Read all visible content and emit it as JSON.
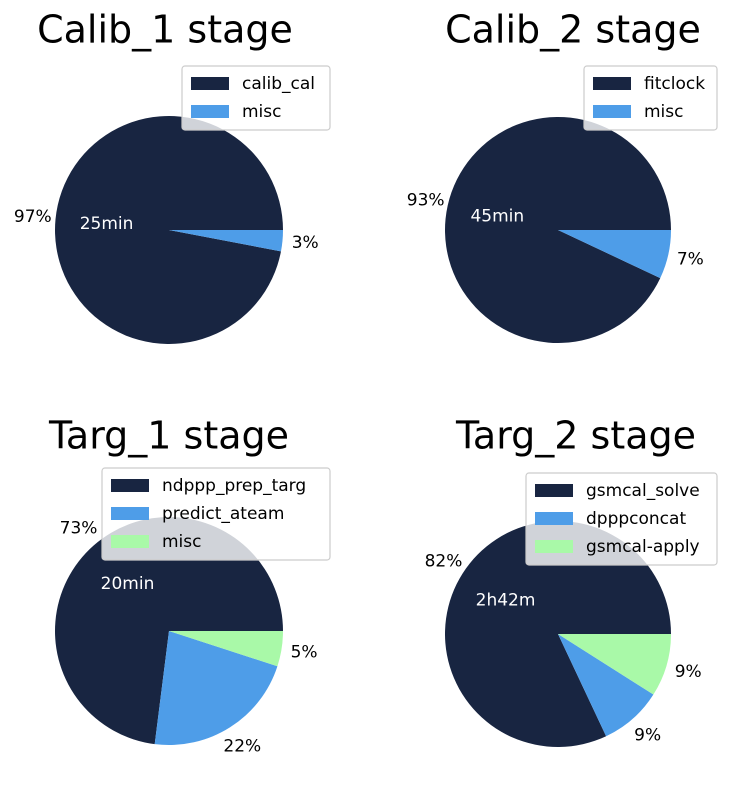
{
  "chart_data": [
    {
      "type": "pie",
      "title": "Calib_1 stage",
      "center_label": "25min",
      "slices": [
        {
          "label": "calib_cal",
          "value": 97,
          "pct_label": "97%",
          "color": "#182541"
        },
        {
          "label": "misc",
          "value": 3,
          "pct_label": "3%",
          "color": "#4e9de8"
        }
      ]
    },
    {
      "type": "pie",
      "title": "Calib_2 stage",
      "center_label": "45min",
      "slices": [
        {
          "label": "fitclock",
          "value": 93,
          "pct_label": "93%",
          "color": "#182541"
        },
        {
          "label": "misc",
          "value": 7,
          "pct_label": "7%",
          "color": "#4e9de8"
        }
      ]
    },
    {
      "type": "pie",
      "title": "Targ_1 stage",
      "center_label": "20min",
      "slices": [
        {
          "label": "ndppp_prep_targ",
          "value": 73,
          "pct_label": "73%",
          "color": "#182541"
        },
        {
          "label": "predict_ateam",
          "value": 22,
          "pct_label": "22%",
          "color": "#4e9de8"
        },
        {
          "label": "misc",
          "value": 5,
          "pct_label": "5%",
          "color": "#a9f9a8"
        }
      ]
    },
    {
      "type": "pie",
      "title": "Targ_2 stage",
      "center_label": "2h42m",
      "slices": [
        {
          "label": "gsmcal_solve",
          "value": 82,
          "pct_label": "82%",
          "color": "#182541"
        },
        {
          "label": "dpppconcat",
          "value": 9,
          "pct_label": "9%",
          "color": "#4e9de8"
        },
        {
          "label": "gsmcal-apply",
          "value": 9,
          "pct_label": "9%",
          "color": "#a9f9a8"
        }
      ]
    }
  ]
}
